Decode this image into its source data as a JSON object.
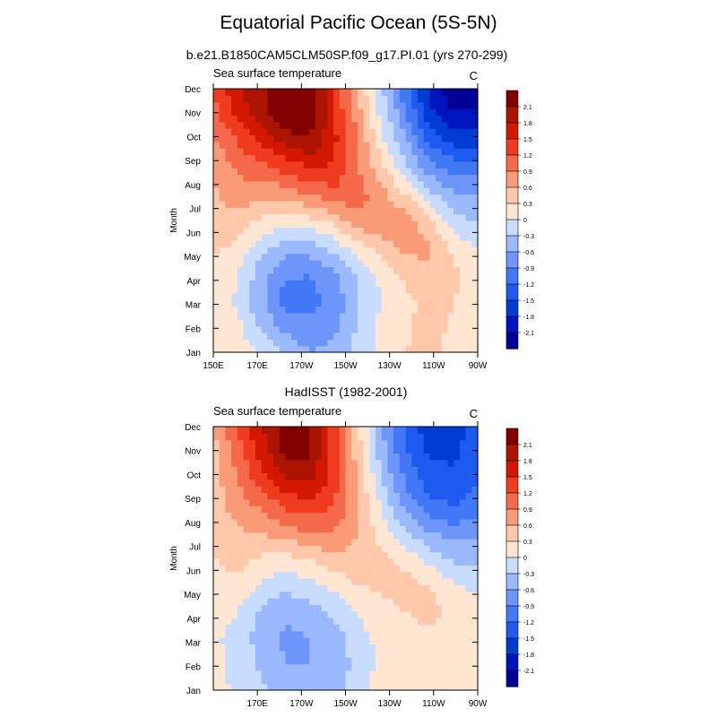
{
  "main_title": "Equatorial Pacific Ocean (5S-5N)",
  "chart_data": [
    {
      "type": "heatmap",
      "title": "b.e21.B1850CAM5CLM50SP.f09_g17.PI.01 (yrs 270-299)",
      "left_label": "Sea surface temperature",
      "units": "C",
      "xlabel": "",
      "ylabel": "Month",
      "x_ticks": [
        "150E",
        "170E",
        "170W",
        "150W",
        "130W",
        "110W",
        "90W"
      ],
      "y_ticks": [
        "Jan",
        "Feb",
        "Mar",
        "Apr",
        "May",
        "Jun",
        "Jul",
        "Aug",
        "Sep",
        "Oct",
        "Nov",
        "Dec"
      ],
      "xlim": [
        "150E",
        "90W"
      ],
      "ylim": [
        "Jan",
        "Dec"
      ],
      "colorbar_levels": [
        "2.1",
        "1.8",
        "1.5",
        "1.2",
        "0.9",
        "0.6",
        "0.3",
        "0",
        "-0.3",
        "-0.6",
        "-0.9",
        "-1.2",
        "-1.5",
        "-1.8",
        "-2.1"
      ],
      "grid": [
        [
          0.25,
          0.2,
          0.0,
          -0.35,
          -0.6,
          -0.5,
          -0.15,
          0.1,
          0.3,
          0.35,
          0.2,
          0.1
        ],
        [
          0.15,
          0.1,
          -0.4,
          -0.7,
          -0.8,
          -0.7,
          -0.3,
          0.1,
          0.25,
          0.4,
          0.25,
          0.1
        ],
        [
          0.2,
          -0.05,
          -0.55,
          -1.05,
          -1.0,
          -0.8,
          -0.35,
          0.0,
          0.2,
          0.45,
          0.3,
          0.15
        ],
        [
          0.25,
          0.0,
          -0.45,
          -0.85,
          -0.9,
          -0.7,
          -0.25,
          0.1,
          0.4,
          0.55,
          0.35,
          0.2
        ],
        [
          0.35,
          0.25,
          -0.2,
          -0.45,
          -0.45,
          -0.2,
          0.15,
          0.45,
          0.7,
          0.65,
          0.2,
          -0.05
        ],
        [
          0.45,
          0.5,
          0.25,
          0.15,
          0.2,
          0.4,
          0.75,
          0.9,
          0.8,
          0.35,
          -0.2,
          -0.3
        ],
        [
          0.55,
          0.75,
          0.7,
          0.7,
          0.9,
          1.1,
          1.05,
          0.7,
          0.3,
          -0.2,
          -0.55,
          -0.6
        ],
        [
          0.65,
          0.95,
          1.1,
          1.3,
          1.5,
          1.45,
          0.95,
          0.4,
          -0.2,
          -0.75,
          -1.0,
          -1.05
        ],
        [
          0.85,
          1.2,
          1.55,
          1.9,
          2.05,
          1.6,
          0.9,
          0.1,
          -0.55,
          -1.3,
          -1.6,
          -1.65
        ],
        [
          1.05,
          1.55,
          1.95,
          2.4,
          2.35,
          1.55,
          0.75,
          -0.1,
          -0.85,
          -1.7,
          -2.05,
          -2.0
        ],
        [
          1.2,
          1.75,
          2.05,
          2.55,
          2.4,
          1.45,
          0.55,
          -0.25,
          -1.1,
          -1.9,
          -2.35,
          -2.25
        ]
      ]
    },
    {
      "type": "heatmap",
      "title": "HadISST (1982-2001)",
      "left_label": "Sea surface temperature",
      "units": "C",
      "xlabel": "",
      "ylabel": "Month",
      "x_ticks": [
        "170E",
        "170W",
        "150W",
        "130W",
        "110W",
        "90W"
      ],
      "y_ticks": [
        "Jan",
        "Feb",
        "Mar",
        "Apr",
        "May",
        "Jun",
        "Jul",
        "Aug",
        "Sep",
        "Oct",
        "Nov",
        "Dec"
      ],
      "xlim": [
        "150E",
        "90W"
      ],
      "ylim": [
        "Jan",
        "Dec"
      ],
      "colorbar_levels": [
        "2.1",
        "1.8",
        "1.5",
        "1.2",
        "0.9",
        "0.6",
        "0.3",
        "0",
        "-0.3",
        "-0.6",
        "-0.9",
        "-1.2",
        "-1.5",
        "-1.8",
        "-2.1"
      ],
      "grid": [
        [
          0.1,
          -0.05,
          -0.25,
          -0.45,
          -0.55,
          -0.45,
          -0.1,
          0.1,
          0.15,
          0.2,
          0.15,
          0.15
        ],
        [
          0.05,
          -0.05,
          -0.35,
          -0.6,
          -0.6,
          -0.5,
          -0.2,
          0.1,
          0.15,
          0.2,
          0.15,
          0.1
        ],
        [
          0.05,
          -0.1,
          -0.45,
          -0.65,
          -0.6,
          -0.45,
          -0.15,
          0.1,
          0.2,
          0.25,
          0.15,
          0.1
        ],
        [
          0.1,
          0.0,
          -0.35,
          -0.55,
          -0.45,
          -0.25,
          0.05,
          0.2,
          0.3,
          0.4,
          0.25,
          0.15
        ],
        [
          0.2,
          0.2,
          -0.05,
          -0.2,
          -0.1,
          0.1,
          0.3,
          0.35,
          0.4,
          0.3,
          0.05,
          -0.1
        ],
        [
          0.3,
          0.4,
          0.25,
          0.2,
          0.3,
          0.5,
          0.5,
          0.35,
          0.2,
          -0.1,
          -0.35,
          -0.4
        ],
        [
          0.35,
          0.55,
          0.6,
          0.75,
          0.9,
          0.9,
          0.6,
          0.2,
          -0.25,
          -0.6,
          -0.75,
          -0.7
        ],
        [
          0.4,
          0.75,
          0.95,
          1.25,
          1.4,
          1.2,
          0.6,
          -0.05,
          -0.7,
          -1.1,
          -1.2,
          -1.05
        ],
        [
          0.45,
          0.9,
          1.35,
          1.75,
          1.85,
          1.4,
          0.55,
          -0.3,
          -0.95,
          -1.35,
          -1.45,
          -1.2
        ],
        [
          0.5,
          1.05,
          1.6,
          2.15,
          2.15,
          1.4,
          0.45,
          -0.45,
          -1.15,
          -1.55,
          -1.55,
          -1.35
        ],
        [
          0.55,
          1.2,
          1.8,
          2.3,
          2.2,
          1.35,
          0.35,
          -0.55,
          -1.3,
          -1.7,
          -1.6,
          -1.4
        ]
      ]
    }
  ],
  "colors": {
    "palette": [
      "#000096",
      "#0014be",
      "#003cd2",
      "#1e5af0",
      "#4178f5",
      "#6e96fa",
      "#9bb9ff",
      "#c8dcff",
      "#ffe6d2",
      "#ffc8aa",
      "#fa9b78",
      "#f5694b",
      "#f03c1e",
      "#d21900",
      "#aa1400",
      "#820000"
    ]
  }
}
